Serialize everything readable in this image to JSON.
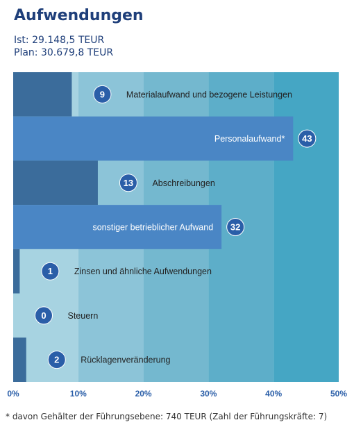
{
  "title": "Aufwendungen",
  "subtitle_ist": "Ist: 29.148,5 TEUR",
  "subtitle_plan": "Plan: 30.679,8 TEUR",
  "footnote": "* davon Gehälter der Führungsebene: 740 TEUR (Zahl der Führungskräfte: 7)",
  "colors": {
    "band_1": "#a7d3e1",
    "band_2": "#8cc4d8",
    "band_3": "#74b8cf",
    "band_4": "#5daec9",
    "band_5": "#45a6c4",
    "bar_dark": "#3b6c9b",
    "bar_bright": "#4a86c5",
    "badge": "#2a5ea8",
    "axis_text": "#2a5ea8"
  },
  "chart_data": {
    "type": "bar",
    "orientation": "horizontal",
    "unit": "%",
    "xlim": [
      0,
      50
    ],
    "x_ticks": [
      "0%",
      "10%",
      "20%",
      "30%",
      "40%",
      "50%"
    ],
    "categories": [
      "Materialaufwand  und bezogene  Leistungen",
      "Personalaufwand*",
      "Abschreibungen",
      "sonstiger betrieblicher Aufwand",
      "Zinsen und ähnliche Aufwendungen",
      "Steuern",
      "Rücklagenveränderung"
    ],
    "values": [
      9,
      43,
      13,
      32,
      1,
      0,
      2
    ],
    "data_labels": [
      "9",
      "43",
      "13",
      "32",
      "1",
      "0",
      "2"
    ],
    "styles": [
      "dark",
      "bright",
      "dark",
      "bright",
      "dark",
      "dark",
      "dark"
    ]
  }
}
